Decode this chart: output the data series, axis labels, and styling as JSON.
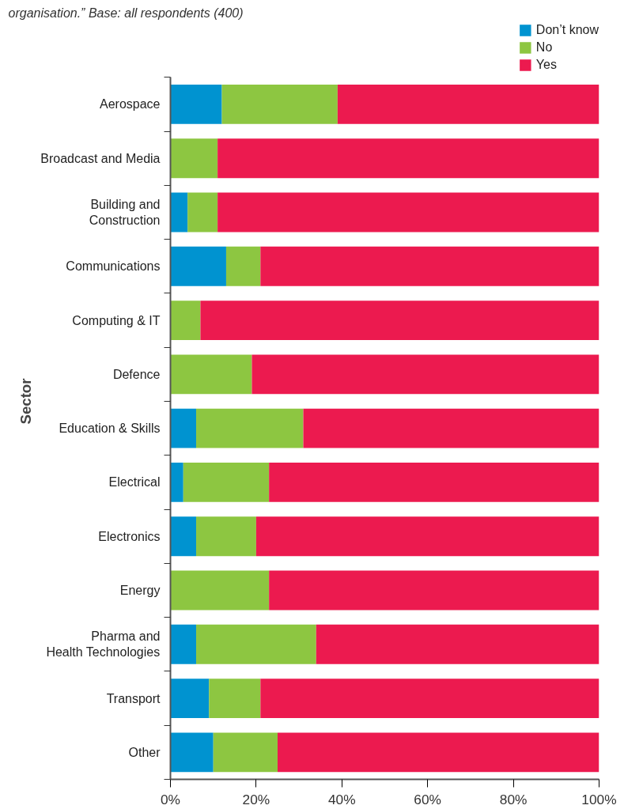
{
  "chart_data": {
    "type": "bar",
    "orientation": "horizontal",
    "stacked": true,
    "ylabel": "Sector",
    "annotations": [
      "organisation.”  Base: all respondents (400)"
    ],
    "categories": [
      "Aerospace",
      "Broadcast and Media",
      "Building and\nConstruction",
      "Communications",
      "Computing & IT",
      "Defence",
      "Education & Skills",
      "Electrical",
      "Electronics",
      "Energy",
      "Pharma and\nHealth Technologies",
      "Transport",
      "Other"
    ],
    "series": [
      {
        "name": "Don’t know",
        "color": "#0093d0",
        "values": [
          12,
          0,
          4,
          13,
          0,
          0,
          6,
          3,
          6,
          0,
          6,
          9,
          10
        ]
      },
      {
        "name": "No",
        "color": "#8dc641",
        "values": [
          27,
          11,
          7,
          8,
          7,
          19,
          25,
          20,
          14,
          23,
          28,
          12,
          15
        ]
      },
      {
        "name": "Yes",
        "color": "#ec1a4f",
        "values": [
          61,
          89,
          89,
          79,
          93,
          81,
          69,
          77,
          80,
          77,
          66,
          79,
          75
        ]
      }
    ],
    "xlim": [
      0,
      100
    ],
    "xticks": [
      {
        "value": 0,
        "label": "0%"
      },
      {
        "value": 20,
        "label": "20%"
      },
      {
        "value": 40,
        "label": "40%"
      },
      {
        "value": 60,
        "label": "60%"
      },
      {
        "value": 80,
        "label": "80%"
      },
      {
        "value": 100,
        "label": "100%"
      }
    ],
    "grid": false,
    "legend": "top right"
  }
}
